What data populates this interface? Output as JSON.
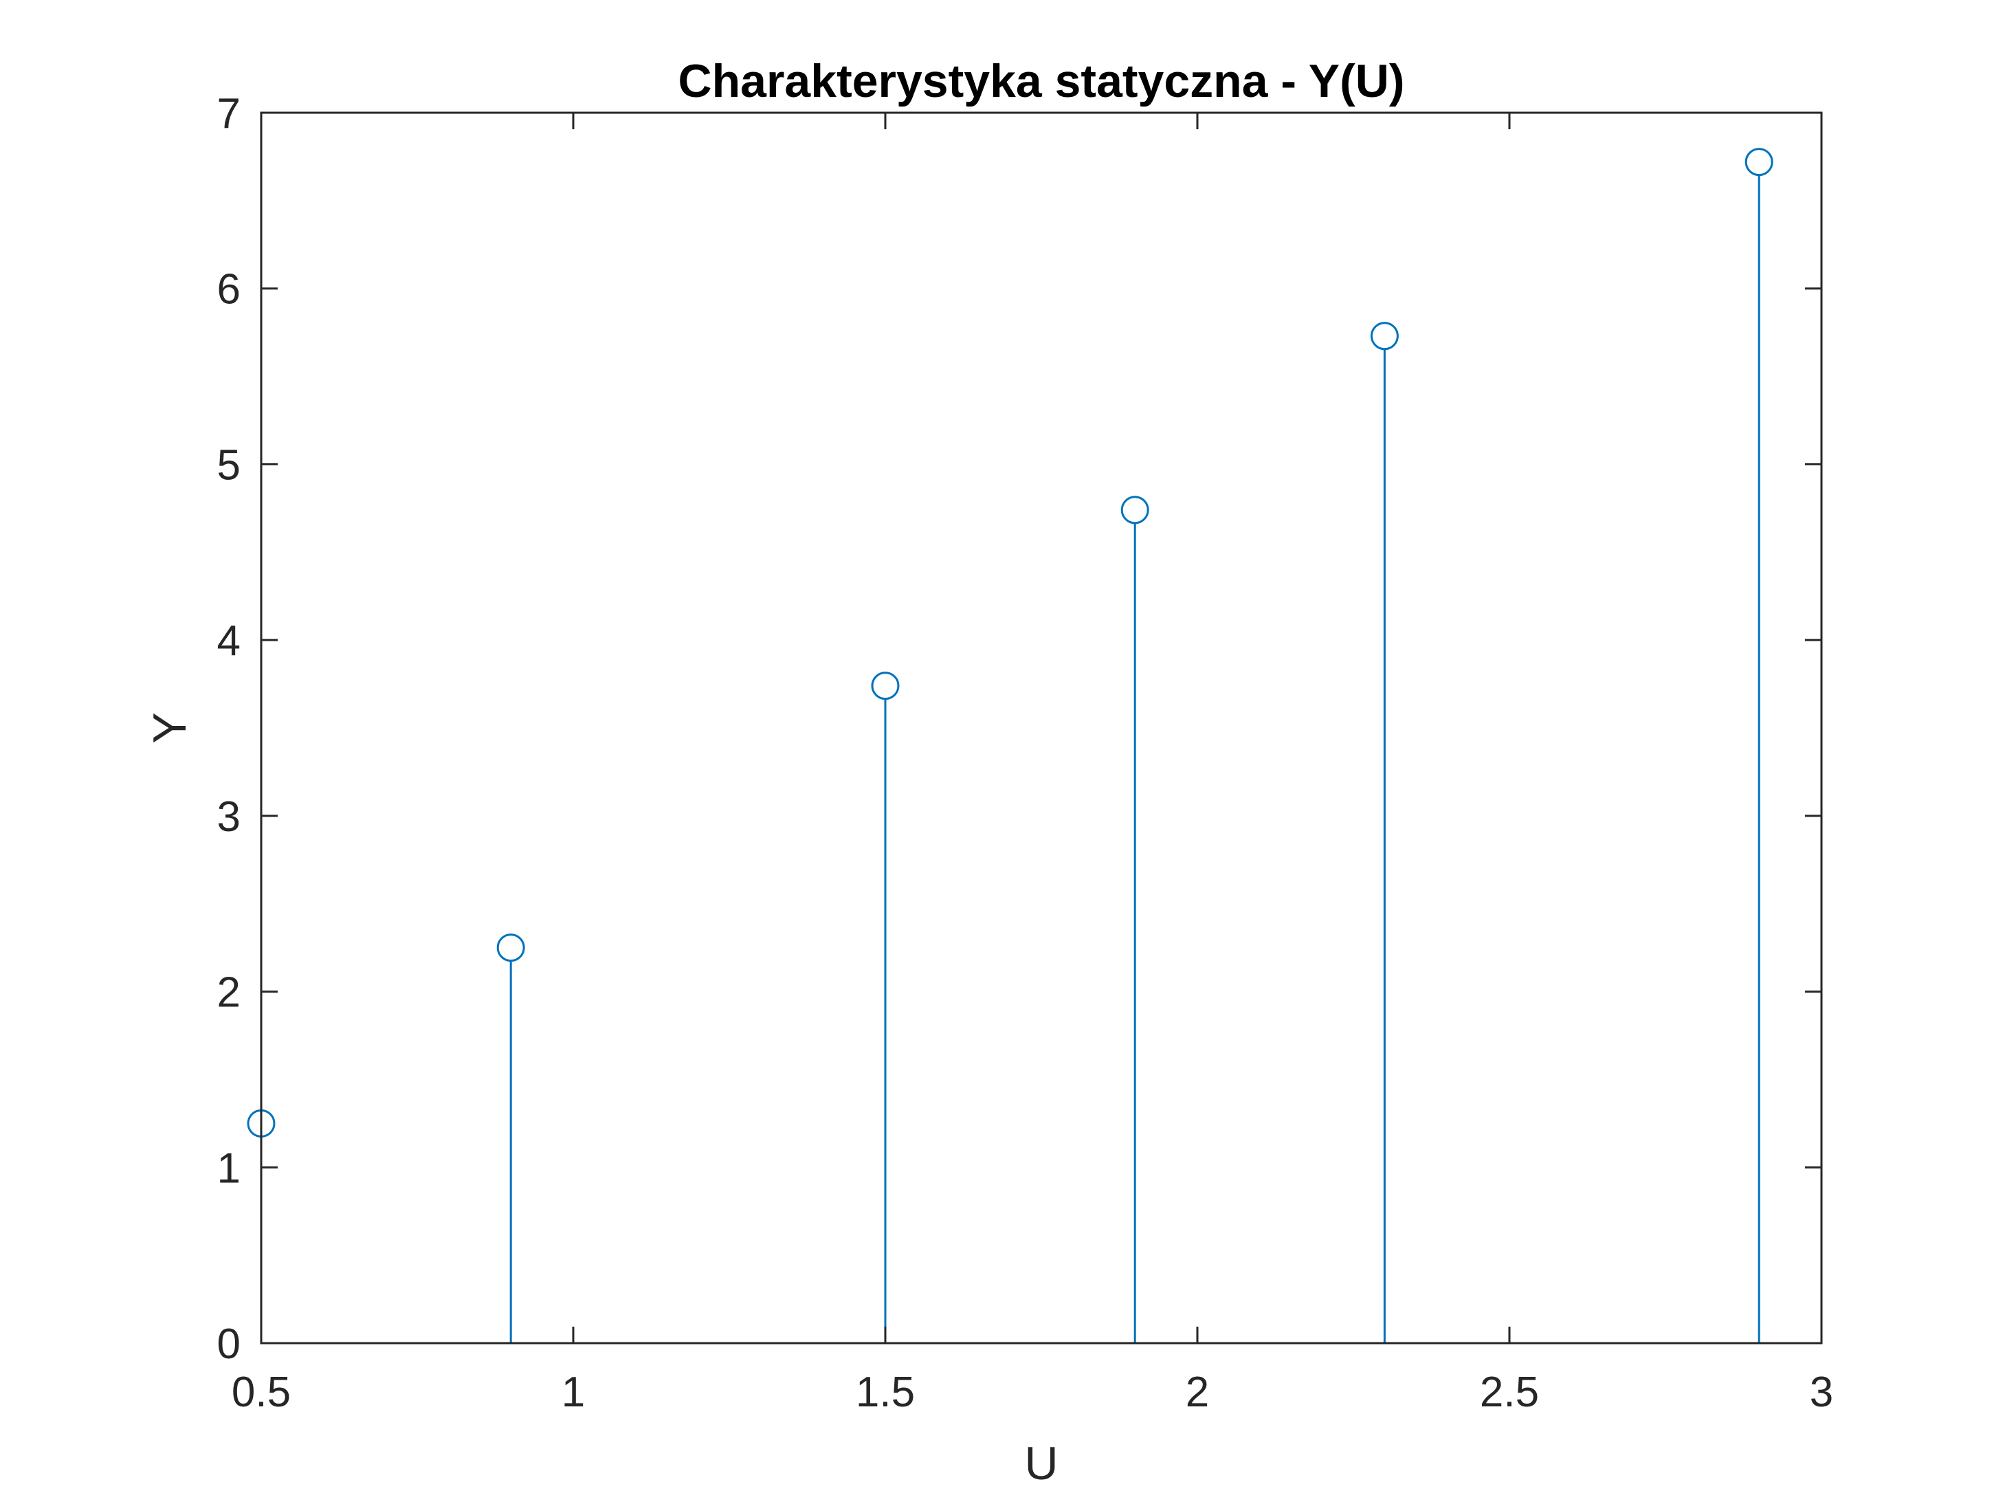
{
  "chart_data": {
    "type": "stem",
    "title": "Charakterystyka statyczna - Y(U)",
    "xlabel": "U",
    "ylabel": "Y",
    "xlim": [
      0.5,
      3
    ],
    "ylim": [
      0,
      7
    ],
    "xticks": [
      0.5,
      1,
      1.5,
      2,
      2.5,
      3
    ],
    "xtick_labels": [
      "0.5",
      "1",
      "1.5",
      "2",
      "2.5",
      "3"
    ],
    "yticks": [
      0,
      1,
      2,
      3,
      4,
      5,
      6,
      7
    ],
    "ytick_labels": [
      "0",
      "1",
      "2",
      "3",
      "4",
      "5",
      "6",
      "7"
    ],
    "grid": false,
    "series": [
      {
        "color": "#0072BD",
        "marker": "circle",
        "x": [
          0.5,
          0.9,
          1.5,
          1.9,
          2.3,
          2.9
        ],
        "y": [
          1.25,
          2.25,
          3.74,
          4.74,
          5.73,
          6.72
        ]
      }
    ],
    "axis_color": "#262626"
  }
}
